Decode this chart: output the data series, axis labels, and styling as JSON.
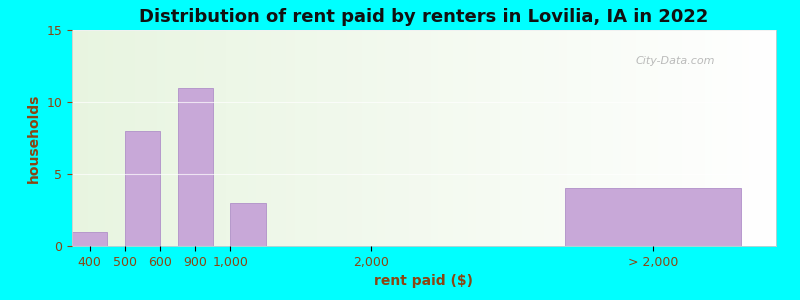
{
  "title": "Distribution of rent paid by renters in Lovilia, IA in 2022",
  "xlabel": "rent paid ($)",
  "ylabel": "households",
  "bar_color": "#c8a8d8",
  "bar_edge_color": "#b090c8",
  "values": [
    1,
    8,
    11,
    3,
    4
  ],
  "ylim": [
    0,
    15
  ],
  "yticks": [
    0,
    5,
    10,
    15
  ],
  "outer_bg": "#00ffff",
  "bg_color": "#e8f5e2",
  "title_fontsize": 13,
  "axis_label_fontsize": 10,
  "tick_fontsize": 9,
  "watermark_text": "City-Data.com",
  "xtick_positions": [
    0.5,
    2.0,
    3.5,
    5.0,
    8.5,
    16.0
  ],
  "xtick_labels": [
    "400",
    "500600",
    "900",
    "1,000",
    "2,000",
    "> 2,000"
  ],
  "bar_lefts": [
    0.0,
    1.5,
    3.0,
    4.5,
    14.0
  ],
  "bar_widths": [
    1.0,
    1.0,
    1.0,
    1.0,
    5.0
  ]
}
